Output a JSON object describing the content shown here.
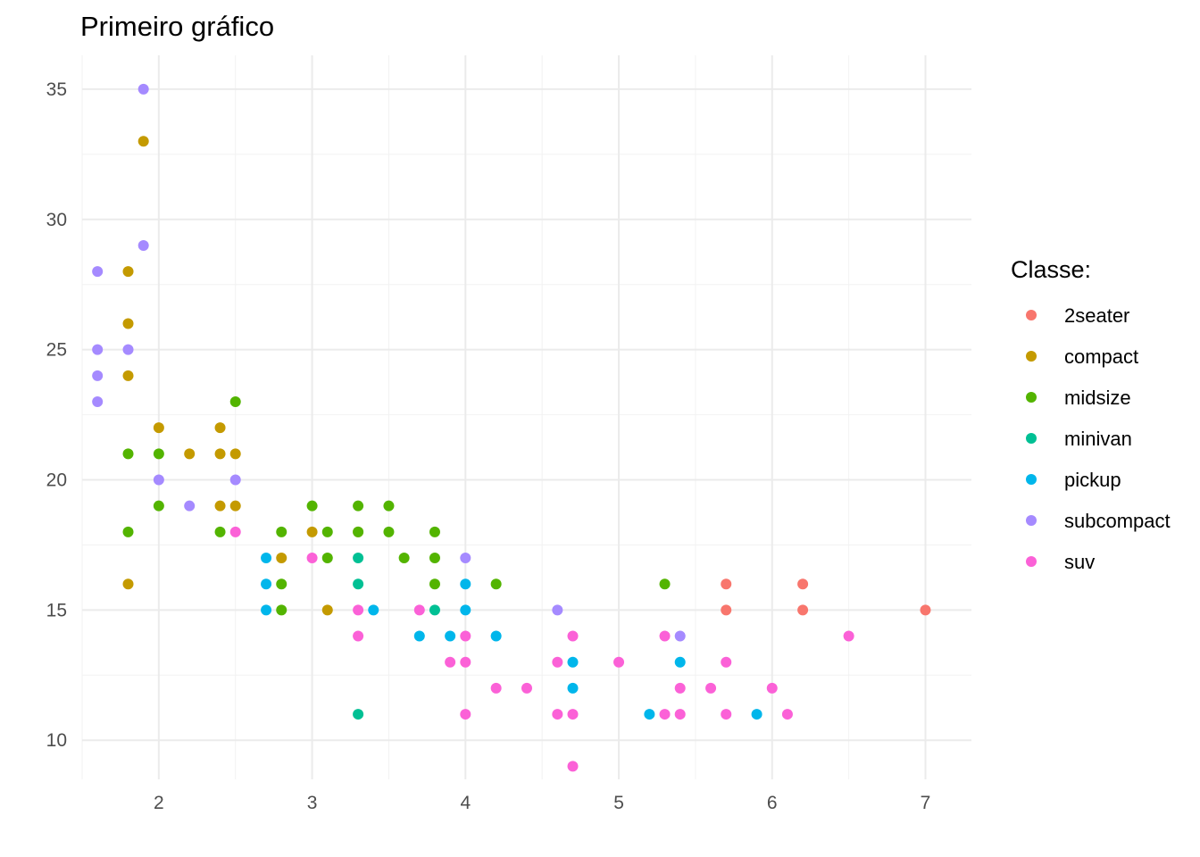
{
  "chart_data": {
    "type": "scatter",
    "title": "Primeiro gráfico",
    "xlabel": "",
    "ylabel": "",
    "xlim": [
      1.5,
      7.3
    ],
    "ylim": [
      8.5,
      36.3
    ],
    "x_ticks": [
      2,
      3,
      4,
      5,
      6,
      7
    ],
    "x_tick_labels": [
      "2",
      "3",
      "4",
      "5",
      "6",
      "7"
    ],
    "y_ticks": [
      10,
      15,
      20,
      25,
      30,
      35
    ],
    "y_tick_labels": [
      "10",
      "15",
      "20",
      "25",
      "30",
      "35"
    ],
    "grid": true,
    "legend": {
      "title": "Classe:",
      "position": "right"
    },
    "series": [
      {
        "name": "2seater",
        "color": "#F8766D",
        "points": [
          [
            5.7,
            16
          ],
          [
            5.7,
            15
          ],
          [
            6.2,
            16
          ],
          [
            6.2,
            15
          ],
          [
            7.0,
            15
          ]
        ]
      },
      {
        "name": "compact",
        "color": "#C49A00",
        "points": [
          [
            1.8,
            28
          ],
          [
            1.8,
            26
          ],
          [
            1.8,
            24
          ],
          [
            1.8,
            16
          ],
          [
            1.9,
            33
          ],
          [
            2.0,
            22
          ],
          [
            2.2,
            21
          ],
          [
            2.4,
            22
          ],
          [
            2.4,
            21
          ],
          [
            2.4,
            19
          ],
          [
            2.5,
            21
          ],
          [
            2.5,
            19
          ],
          [
            2.8,
            17
          ],
          [
            3.0,
            18
          ],
          [
            3.1,
            15
          ],
          [
            3.3,
            18
          ]
        ]
      },
      {
        "name": "midsize",
        "color": "#53B400",
        "points": [
          [
            1.8,
            21
          ],
          [
            1.8,
            18
          ],
          [
            2.0,
            21
          ],
          [
            2.0,
            19
          ],
          [
            2.4,
            18
          ],
          [
            2.5,
            23
          ],
          [
            2.8,
            18
          ],
          [
            2.8,
            16
          ],
          [
            2.8,
            15
          ],
          [
            3.0,
            19
          ],
          [
            3.1,
            18
          ],
          [
            3.1,
            17
          ],
          [
            3.3,
            19
          ],
          [
            3.3,
            18
          ],
          [
            3.5,
            19
          ],
          [
            3.5,
            18
          ],
          [
            3.6,
            17
          ],
          [
            3.8,
            18
          ],
          [
            3.8,
            17
          ],
          [
            3.8,
            16
          ],
          [
            4.2,
            16
          ],
          [
            5.3,
            16
          ]
        ]
      },
      {
        "name": "minivan",
        "color": "#00C094",
        "points": [
          [
            3.3,
            17
          ],
          [
            3.3,
            16
          ],
          [
            3.3,
            11
          ],
          [
            3.8,
            15
          ]
        ]
      },
      {
        "name": "pickup",
        "color": "#00B6EB",
        "points": [
          [
            2.7,
            17
          ],
          [
            2.7,
            16
          ],
          [
            2.7,
            15
          ],
          [
            3.4,
            15
          ],
          [
            3.7,
            14
          ],
          [
            3.9,
            14
          ],
          [
            4.0,
            16
          ],
          [
            4.0,
            15
          ],
          [
            4.2,
            14
          ],
          [
            4.7,
            13
          ],
          [
            4.7,
            12
          ],
          [
            5.2,
            11
          ],
          [
            5.4,
            13
          ],
          [
            5.9,
            11
          ]
        ]
      },
      {
        "name": "subcompact",
        "color": "#A58AFF",
        "points": [
          [
            1.6,
            28
          ],
          [
            1.6,
            25
          ],
          [
            1.6,
            24
          ],
          [
            1.6,
            23
          ],
          [
            1.8,
            25
          ],
          [
            1.9,
            35
          ],
          [
            1.9,
            29
          ],
          [
            2.0,
            20
          ],
          [
            2.2,
            19
          ],
          [
            2.5,
            20
          ],
          [
            4.0,
            17
          ],
          [
            4.6,
            15
          ],
          [
            5.4,
            14
          ]
        ]
      },
      {
        "name": "suv",
        "color": "#FB61D7",
        "points": [
          [
            2.5,
            18
          ],
          [
            3.0,
            17
          ],
          [
            3.3,
            15
          ],
          [
            3.3,
            14
          ],
          [
            3.7,
            15
          ],
          [
            3.9,
            13
          ],
          [
            4.0,
            14
          ],
          [
            4.0,
            13
          ],
          [
            4.0,
            11
          ],
          [
            4.2,
            12
          ],
          [
            4.4,
            12
          ],
          [
            4.6,
            13
          ],
          [
            4.6,
            11
          ],
          [
            4.7,
            14
          ],
          [
            4.7,
            11
          ],
          [
            4.7,
            9
          ],
          [
            5.0,
            13
          ],
          [
            5.3,
            14
          ],
          [
            5.3,
            11
          ],
          [
            5.4,
            12
          ],
          [
            5.4,
            11
          ],
          [
            5.6,
            12
          ],
          [
            5.7,
            13
          ],
          [
            5.7,
            11
          ],
          [
            6.0,
            12
          ],
          [
            6.1,
            11
          ],
          [
            6.5,
            14
          ]
        ]
      }
    ]
  }
}
